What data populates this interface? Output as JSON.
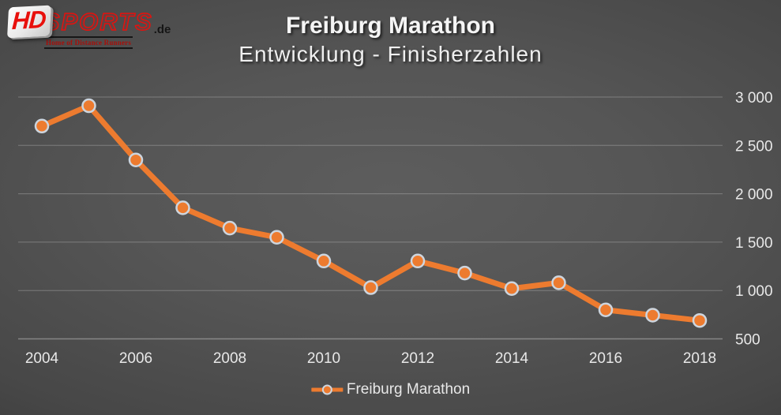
{
  "logo": {
    "hd": "HD",
    "sports": "SPORTS",
    "de": ".de",
    "tagline": "Home of Distance Runners"
  },
  "title": {
    "line1": "Freiburg Marathon",
    "line2": "Entwicklung - Finisherzahlen"
  },
  "chart_data": {
    "type": "line",
    "title": "Freiburg Marathon",
    "subtitle": "Entwicklung - Finisherzahlen",
    "x": [
      2004,
      2005,
      2006,
      2007,
      2008,
      2009,
      2010,
      2011,
      2012,
      2013,
      2014,
      2015,
      2016,
      2017,
      2018
    ],
    "series": [
      {
        "name": "Freiburg Marathon",
        "values": [
          2700,
          2910,
          2350,
          1855,
          1645,
          1550,
          1305,
          1030,
          1305,
          1180,
          1020,
          1080,
          800,
          745,
          690
        ]
      }
    ],
    "ylim": [
      500,
      3000
    ],
    "x_label_years": [
      2004,
      2006,
      2008,
      2010,
      2012,
      2014,
      2016,
      2018
    ],
    "y_ticks": [
      {
        "value": 500,
        "label": "500"
      },
      {
        "value": 1000,
        "label": "1 000"
      },
      {
        "value": 1500,
        "label": "1 500"
      },
      {
        "value": 2000,
        "label": "2 000"
      },
      {
        "value": 2500,
        "label": "2 500"
      },
      {
        "value": 3000,
        "label": "3 000"
      }
    ],
    "grid": true,
    "legend_position": "bottom",
    "line_color": "#ED7B2F",
    "marker_border_color": "#CDD5DE"
  },
  "colors": {
    "accent_orange": "#ED7B2F",
    "marker_ring": "#CDD5DE",
    "text_light": "#EFEFEF",
    "logo_red": "#E8100C",
    "background_center": "#5D5D5D",
    "background_edge": "#242424"
  }
}
